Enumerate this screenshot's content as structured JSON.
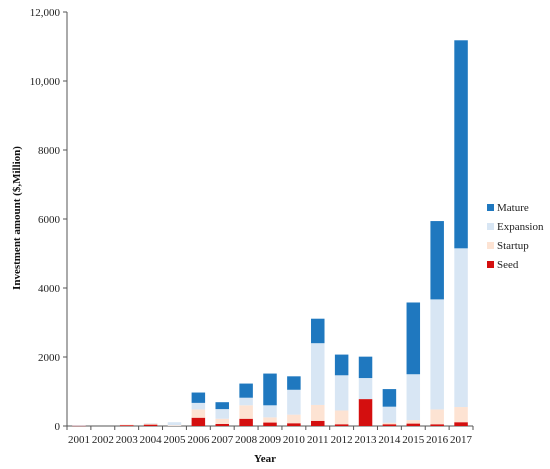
{
  "chart_data": {
    "type": "bar",
    "stacked": true,
    "xlabel": "Year",
    "ylabel": "Investment amount ($,Million)",
    "ylim": [
      0,
      12000
    ],
    "yticks": [
      0,
      2000,
      4000,
      6000,
      8000,
      10000,
      12000
    ],
    "ytick_labels": [
      "0",
      "2000",
      "4000",
      "6000",
      "8000",
      "10,000",
      "12,000"
    ],
    "grid": false,
    "legend_position": "right",
    "categories": [
      "2001",
      "2002",
      "2003",
      "2004",
      "2005",
      "2006",
      "2007",
      "2008",
      "2009",
      "2010",
      "2011",
      "2012",
      "2013",
      "2014",
      "2015",
      "2016",
      "2017"
    ],
    "series": [
      {
        "name": "Seed",
        "color": "#d40f0f",
        "values": [
          10,
          0,
          30,
          40,
          0,
          240,
          60,
          210,
          100,
          80,
          150,
          50,
          780,
          50,
          70,
          50,
          110
        ]
      },
      {
        "name": "Startup",
        "color": "#fde3d3",
        "values": [
          0,
          0,
          5,
          30,
          20,
          240,
          150,
          390,
          150,
          250,
          460,
          400,
          0,
          40,
          100,
          430,
          440
        ]
      },
      {
        "name": "Expansion",
        "color": "#d8e6f4",
        "values": [
          10,
          0,
          0,
          10,
          90,
          190,
          280,
          220,
          350,
          720,
          1790,
          1020,
          610,
          470,
          1330,
          3190,
          4600
        ]
      },
      {
        "name": "Mature",
        "color": "#1f78bf",
        "values": [
          0,
          0,
          0,
          0,
          0,
          300,
          200,
          410,
          920,
          390,
          710,
          600,
          620,
          510,
          2080,
          2270,
          6030
        ]
      }
    ]
  }
}
